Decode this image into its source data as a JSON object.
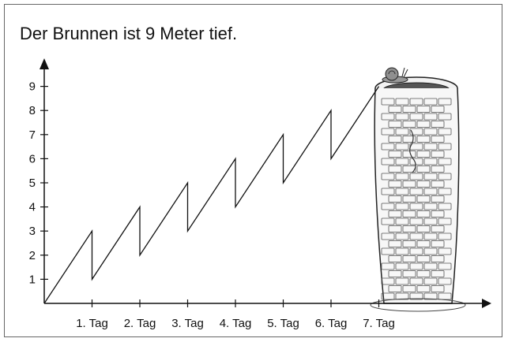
{
  "title": "Der Brunnen ist 9 Meter tief.",
  "chart_data": {
    "type": "line",
    "title": "Der Brunnen ist 9 Meter tief.",
    "xlabel": "",
    "ylabel": "",
    "ylim": [
      0,
      9
    ],
    "xlim": [
      0,
      7
    ],
    "y_ticks": [
      "1",
      "2",
      "3",
      "4",
      "5",
      "6",
      "7",
      "8",
      "9"
    ],
    "x_ticks": [
      "1. Tag",
      "2. Tag",
      "3. Tag",
      "4. Tag",
      "5. Tag",
      "6. Tag",
      "7. Tag"
    ],
    "series": [
      {
        "x": [
          0,
          1,
          1,
          2,
          2,
          3,
          3,
          4,
          4,
          5,
          5,
          6,
          6,
          7
        ],
        "values": [
          0,
          3,
          1,
          4,
          2,
          5,
          3,
          6,
          4,
          7,
          5,
          8,
          6,
          9
        ]
      }
    ],
    "grid": false
  },
  "illustration": {
    "well": "brick-well",
    "snail": "snail-icon"
  }
}
